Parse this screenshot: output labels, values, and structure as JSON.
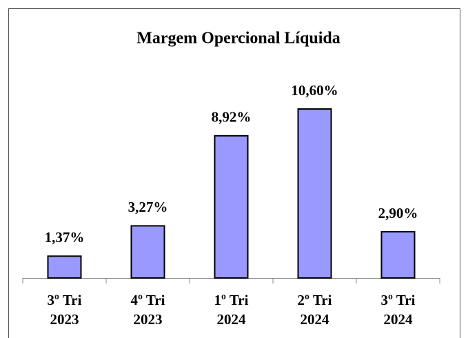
{
  "chart_data": {
    "type": "bar",
    "title": "Margem Opercional Líquida",
    "categories": [
      [
        "3º Tri",
        "2023"
      ],
      [
        "4º Tri",
        "2023"
      ],
      [
        "1º Tri",
        "2024"
      ],
      [
        "2º Tri",
        "2024"
      ],
      [
        "3º Tri",
        "2024"
      ]
    ],
    "values": [
      1.37,
      3.27,
      8.92,
      10.6,
      2.9
    ],
    "value_labels": [
      "1,37%",
      "3,27%",
      "8,92%",
      "10,60%",
      "2,90%"
    ],
    "color": "#9999ff"
  }
}
